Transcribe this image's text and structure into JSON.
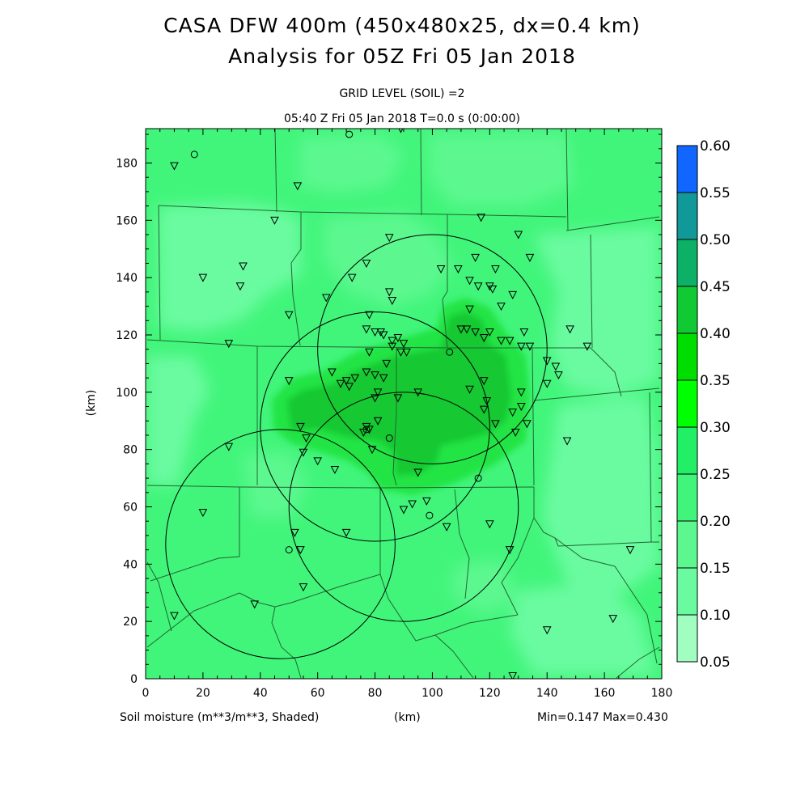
{
  "header": {
    "title_line1": "CASA DFW 400m (450x480x25, dx=0.4 km)",
    "title_line2": "Analysis for 05Z Fri 05 Jan 2018",
    "subtitle_line1": "GRID LEVEL (SOIL) =2",
    "subtitle_line2": "05:40 Z Fri 05 Jan 2018    T=0.0 s (0:00:00)"
  },
  "footer": {
    "field_label": "Soil moisture (m**3/m**3, Shaded)",
    "x_unit": "(km)",
    "stats": "Min=0.147 Max=0.430"
  },
  "colors": {
    "base": "#41f57a",
    "light": "#6afba0",
    "dark": "#12c832",
    "mid": "#22e444",
    "county_line": "#226633"
  },
  "chart_data": {
    "type": "heatmap",
    "title": "CASA DFW 400m (450x480x25, dx=0.4 km)",
    "subtitle": "Analysis for 05Z Fri 05 Jan 2018",
    "xlabel": "(km)",
    "ylabel": "(km)",
    "xlim": [
      0,
      180
    ],
    "ylim": [
      0,
      192
    ],
    "x_ticks": [
      0,
      20,
      40,
      60,
      80,
      100,
      120,
      140,
      160,
      180
    ],
    "y_ticks": [
      0,
      20,
      40,
      60,
      80,
      100,
      120,
      140,
      160,
      180
    ],
    "colorbar": {
      "levels": [
        "0.05",
        "0.10",
        "0.15",
        "0.20",
        "0.25",
        "0.30",
        "0.35",
        "0.40",
        "0.45",
        "0.50",
        "0.55",
        "0.60"
      ],
      "colors": [
        "#ccffcc",
        "#a0ffc0",
        "#6afba0",
        "#5cf88f",
        "#41f57a",
        "#22ee66",
        "#00ff00",
        "#00dd00",
        "#11c933",
        "#0cb066",
        "#119999",
        "#1166ff"
      ]
    },
    "value_range": {
      "min": 0.147,
      "max": 0.43
    },
    "radar_rings": [
      {
        "cx": 100,
        "cy": 115,
        "r": 40
      },
      {
        "cx": 80,
        "cy": 88,
        "r": 40
      },
      {
        "cx": 90,
        "cy": 60,
        "r": 40
      },
      {
        "cx": 47,
        "cy": 47,
        "r": 40
      }
    ],
    "stations_triangle": [
      [
        10,
        179
      ],
      [
        20,
        140
      ],
      [
        34,
        144
      ],
      [
        33,
        137
      ],
      [
        29,
        117
      ],
      [
        45,
        160
      ],
      [
        53,
        172
      ],
      [
        50,
        127
      ],
      [
        63,
        133
      ],
      [
        65,
        107
      ],
      [
        50,
        104
      ],
      [
        72,
        140
      ],
      [
        77,
        145
      ],
      [
        78,
        127
      ],
      [
        77,
        122
      ],
      [
        80,
        121
      ],
      [
        82,
        121
      ],
      [
        85,
        154
      ],
      [
        85,
        135
      ],
      [
        86,
        132
      ],
      [
        83,
        120
      ],
      [
        86,
        118
      ],
      [
        88,
        119
      ],
      [
        90,
        117
      ],
      [
        86,
        116
      ],
      [
        89,
        114
      ],
      [
        91,
        114
      ],
      [
        84,
        110
      ],
      [
        83,
        105
      ],
      [
        78,
        114
      ],
      [
        77,
        107
      ],
      [
        80,
        106
      ],
      [
        73,
        105
      ],
      [
        70,
        104
      ],
      [
        68,
        103
      ],
      [
        71,
        102
      ],
      [
        81,
        100
      ],
      [
        80,
        98
      ],
      [
        88,
        98
      ],
      [
        95,
        100
      ],
      [
        81,
        90
      ],
      [
        77,
        88
      ],
      [
        78,
        87
      ],
      [
        76,
        86
      ],
      [
        79,
        80
      ],
      [
        60,
        76
      ],
      [
        66,
        73
      ],
      [
        56,
        84
      ],
      [
        54,
        88
      ],
      [
        55,
        79
      ],
      [
        29,
        81
      ],
      [
        20,
        58
      ],
      [
        52,
        51
      ],
      [
        54,
        45
      ],
      [
        55,
        32
      ],
      [
        38,
        26
      ],
      [
        10,
        22
      ],
      [
        70,
        51
      ],
      [
        90,
        59
      ],
      [
        93,
        61
      ],
      [
        98,
        62
      ],
      [
        95,
        72
      ],
      [
        103,
        143
      ],
      [
        109,
        143
      ],
      [
        113,
        139
      ],
      [
        116,
        137
      ],
      [
        115,
        147
      ],
      [
        122,
        143
      ],
      [
        120,
        137
      ],
      [
        121,
        136
      ],
      [
        117,
        161
      ],
      [
        130,
        155
      ],
      [
        134,
        147
      ],
      [
        128,
        134
      ],
      [
        124,
        130
      ],
      [
        113,
        129
      ],
      [
        110,
        122
      ],
      [
        112,
        122
      ],
      [
        115,
        121
      ],
      [
        118,
        119
      ],
      [
        120,
        121
      ],
      [
        124,
        118
      ],
      [
        127,
        118
      ],
      [
        131,
        116
      ],
      [
        132,
        121
      ],
      [
        134,
        116
      ],
      [
        140,
        111
      ],
      [
        143,
        109
      ],
      [
        144,
        106
      ],
      [
        148,
        122
      ],
      [
        154,
        116
      ],
      [
        118,
        104
      ],
      [
        113,
        101
      ],
      [
        119,
        97
      ],
      [
        122,
        89
      ],
      [
        118,
        94
      ],
      [
        128,
        93
      ],
      [
        131,
        100
      ],
      [
        131,
        95
      ],
      [
        133,
        89
      ],
      [
        129,
        86
      ],
      [
        147,
        83
      ],
      [
        140,
        103
      ],
      [
        120,
        54
      ],
      [
        127,
        45
      ],
      [
        105,
        53
      ],
      [
        140,
        17
      ],
      [
        163,
        21
      ],
      [
        169,
        45
      ],
      [
        128,
        1
      ],
      [
        89,
        192
      ]
    ],
    "stations_circle": [
      [
        17,
        183
      ],
      [
        71,
        190
      ],
      [
        106,
        114
      ],
      [
        85,
        84
      ],
      [
        77,
        87
      ],
      [
        99,
        57
      ],
      [
        116,
        70
      ],
      [
        50,
        45
      ]
    ]
  }
}
